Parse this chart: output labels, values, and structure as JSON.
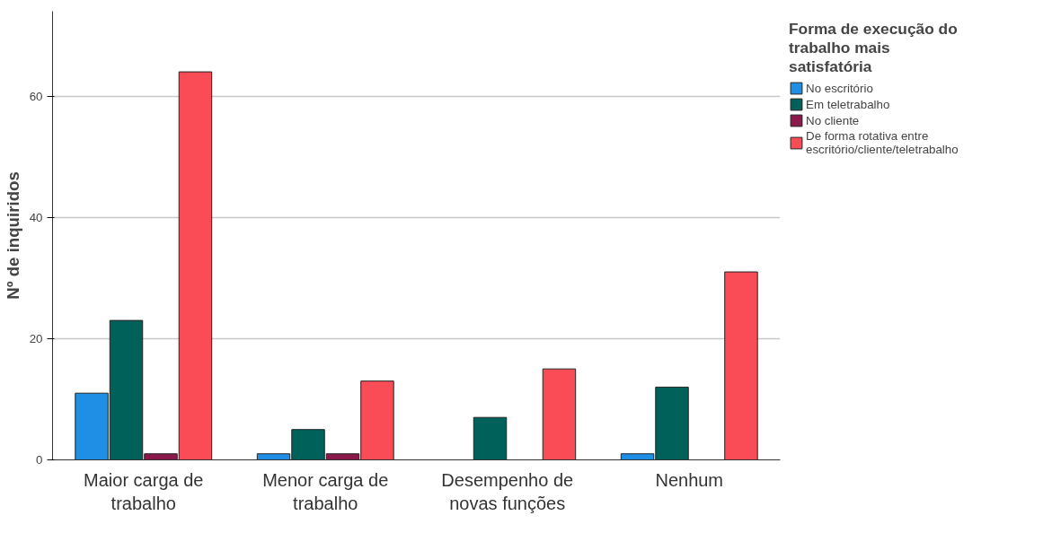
{
  "chart_data": {
    "type": "bar",
    "ylabel": "Nº de inquiridos",
    "legend_title": "Forma de execução do trabalho mais satisfatória",
    "categories": [
      "Maior carga de trabalho",
      "Menor carga de trabalho",
      "Desempenho de novas funções",
      "Nenhum"
    ],
    "series": [
      {
        "name": "No escritório",
        "color": "#1f8fe6",
        "values": [
          11,
          1,
          null,
          1
        ]
      },
      {
        "name": "Em teletrabalho",
        "color": "#00605a",
        "values": [
          23,
          5,
          7,
          12
        ]
      },
      {
        "name": "No cliente",
        "color": "#8b1a4a",
        "values": [
          1,
          1,
          null,
          null
        ]
      },
      {
        "name": "De forma rotativa entre escritório/cliente/teletrabalho",
        "color": "#f94c56",
        "values": [
          64,
          13,
          15,
          31
        ]
      }
    ],
    "ylim": [
      0,
      74
    ],
    "yticks": [
      0,
      20,
      40,
      60
    ],
    "grid": "y",
    "legend": "top right"
  }
}
